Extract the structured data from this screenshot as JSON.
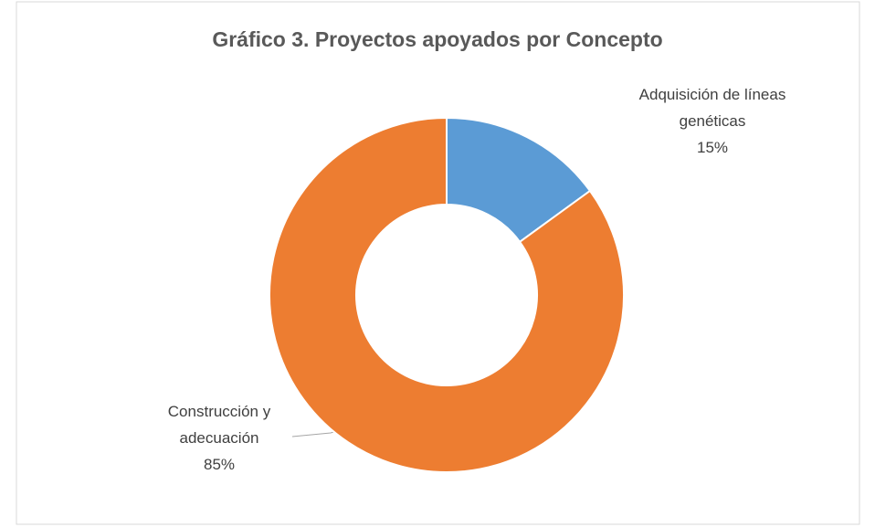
{
  "chart_data": {
    "type": "donut",
    "title": "Gráfico 3. Proyectos apoyados por Concepto",
    "categories": [
      "Adquisición de líneas genéticas",
      "Construcción y adecuación"
    ],
    "values": [
      15,
      85
    ],
    "value_labels": [
      "15%",
      "85%"
    ],
    "colors": [
      "#5b9bd5",
      "#ed7d31"
    ]
  }
}
